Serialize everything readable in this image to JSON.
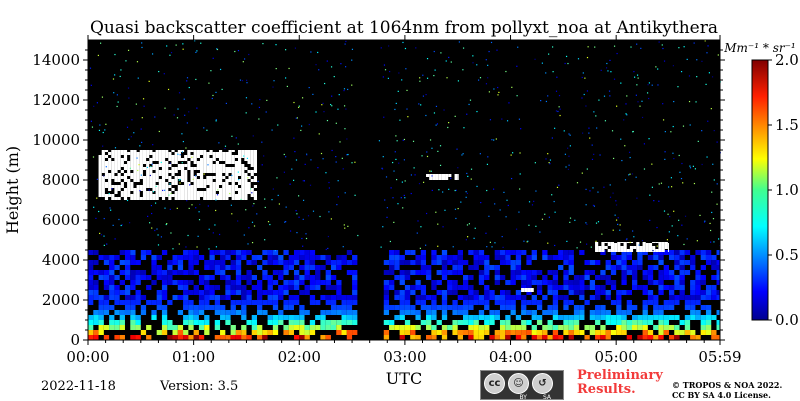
{
  "chart_data": {
    "type": "heatmap",
    "title": "Quasi backscatter coefficient at 1064nm from pollyxt_noa at Antikythera",
    "xlabel": "UTC",
    "ylabel": "Height (m)",
    "x_ticks": [
      "00:00",
      "01:00",
      "02:00",
      "03:00",
      "04:00",
      "05:00",
      "05:59"
    ],
    "x_tick_hours": [
      0,
      1,
      2,
      3,
      4,
      5,
      5.983
    ],
    "xlim_hours": [
      0,
      5.983
    ],
    "y_ticks": [
      0,
      2000,
      4000,
      6000,
      8000,
      10000,
      12000,
      14000
    ],
    "ylim": [
      0,
      15000
    ],
    "colorbar": {
      "label": "Mm⁻¹ * sr⁻¹",
      "ticks": [
        0.0,
        0.5,
        1.0,
        1.5,
        2.0
      ],
      "tick_labels": [
        "0.0",
        "0.5",
        "1.0",
        "1.5",
        "2.0"
      ],
      "vmin": 0.0,
      "vmax": 2.0,
      "colormap": "jet"
    },
    "no_data_interval_hours": [
      2.55,
      2.75
    ],
    "features": [
      {
        "label": "boundary layer",
        "hours": [
          0,
          5.983
        ],
        "height_m": [
          0,
          2000
        ],
        "value_range": [
          0.3,
          2.0
        ]
      },
      {
        "label": "aerosol layer",
        "hours": [
          0,
          5.983
        ],
        "height_m": [
          2000,
          4500
        ],
        "value_range": [
          0.1,
          0.4
        ]
      },
      {
        "label": "cloud",
        "hours": [
          0.1,
          1.6
        ],
        "height_m": [
          7000,
          9500
        ],
        "value_range": [
          2.0,
          2.0
        ]
      },
      {
        "label": "cloud",
        "hours": [
          3.2,
          3.5
        ],
        "height_m": [
          8000,
          8300
        ],
        "value_range": [
          2.0,
          2.0
        ]
      },
      {
        "label": "cloud",
        "hours": [
          4.8,
          5.5
        ],
        "height_m": [
          4400,
          4900
        ],
        "value_range": [
          2.0,
          2.0
        ]
      },
      {
        "label": "cloud",
        "hours": [
          4.1,
          4.25
        ],
        "height_m": [
          2400,
          2600
        ],
        "value_range": [
          2.0,
          2.0
        ]
      }
    ]
  },
  "footer": {
    "date": "2022-11-18",
    "version": "Version: 3.5",
    "preliminary_line1": "Preliminary",
    "preliminary_line2": "Results.",
    "copyright_line1": "© TROPOS & NOA 2022.",
    "copyright_line2": "CC BY SA 4.0 License.",
    "license_badge_icons": [
      "cc-icon",
      "by-icon",
      "sa-icon"
    ],
    "license_badge_text": [
      "BY",
      "SA"
    ]
  },
  "colors": {
    "background": "#000000",
    "no_data": "#000000",
    "prelim_text": "#f23a3a"
  }
}
